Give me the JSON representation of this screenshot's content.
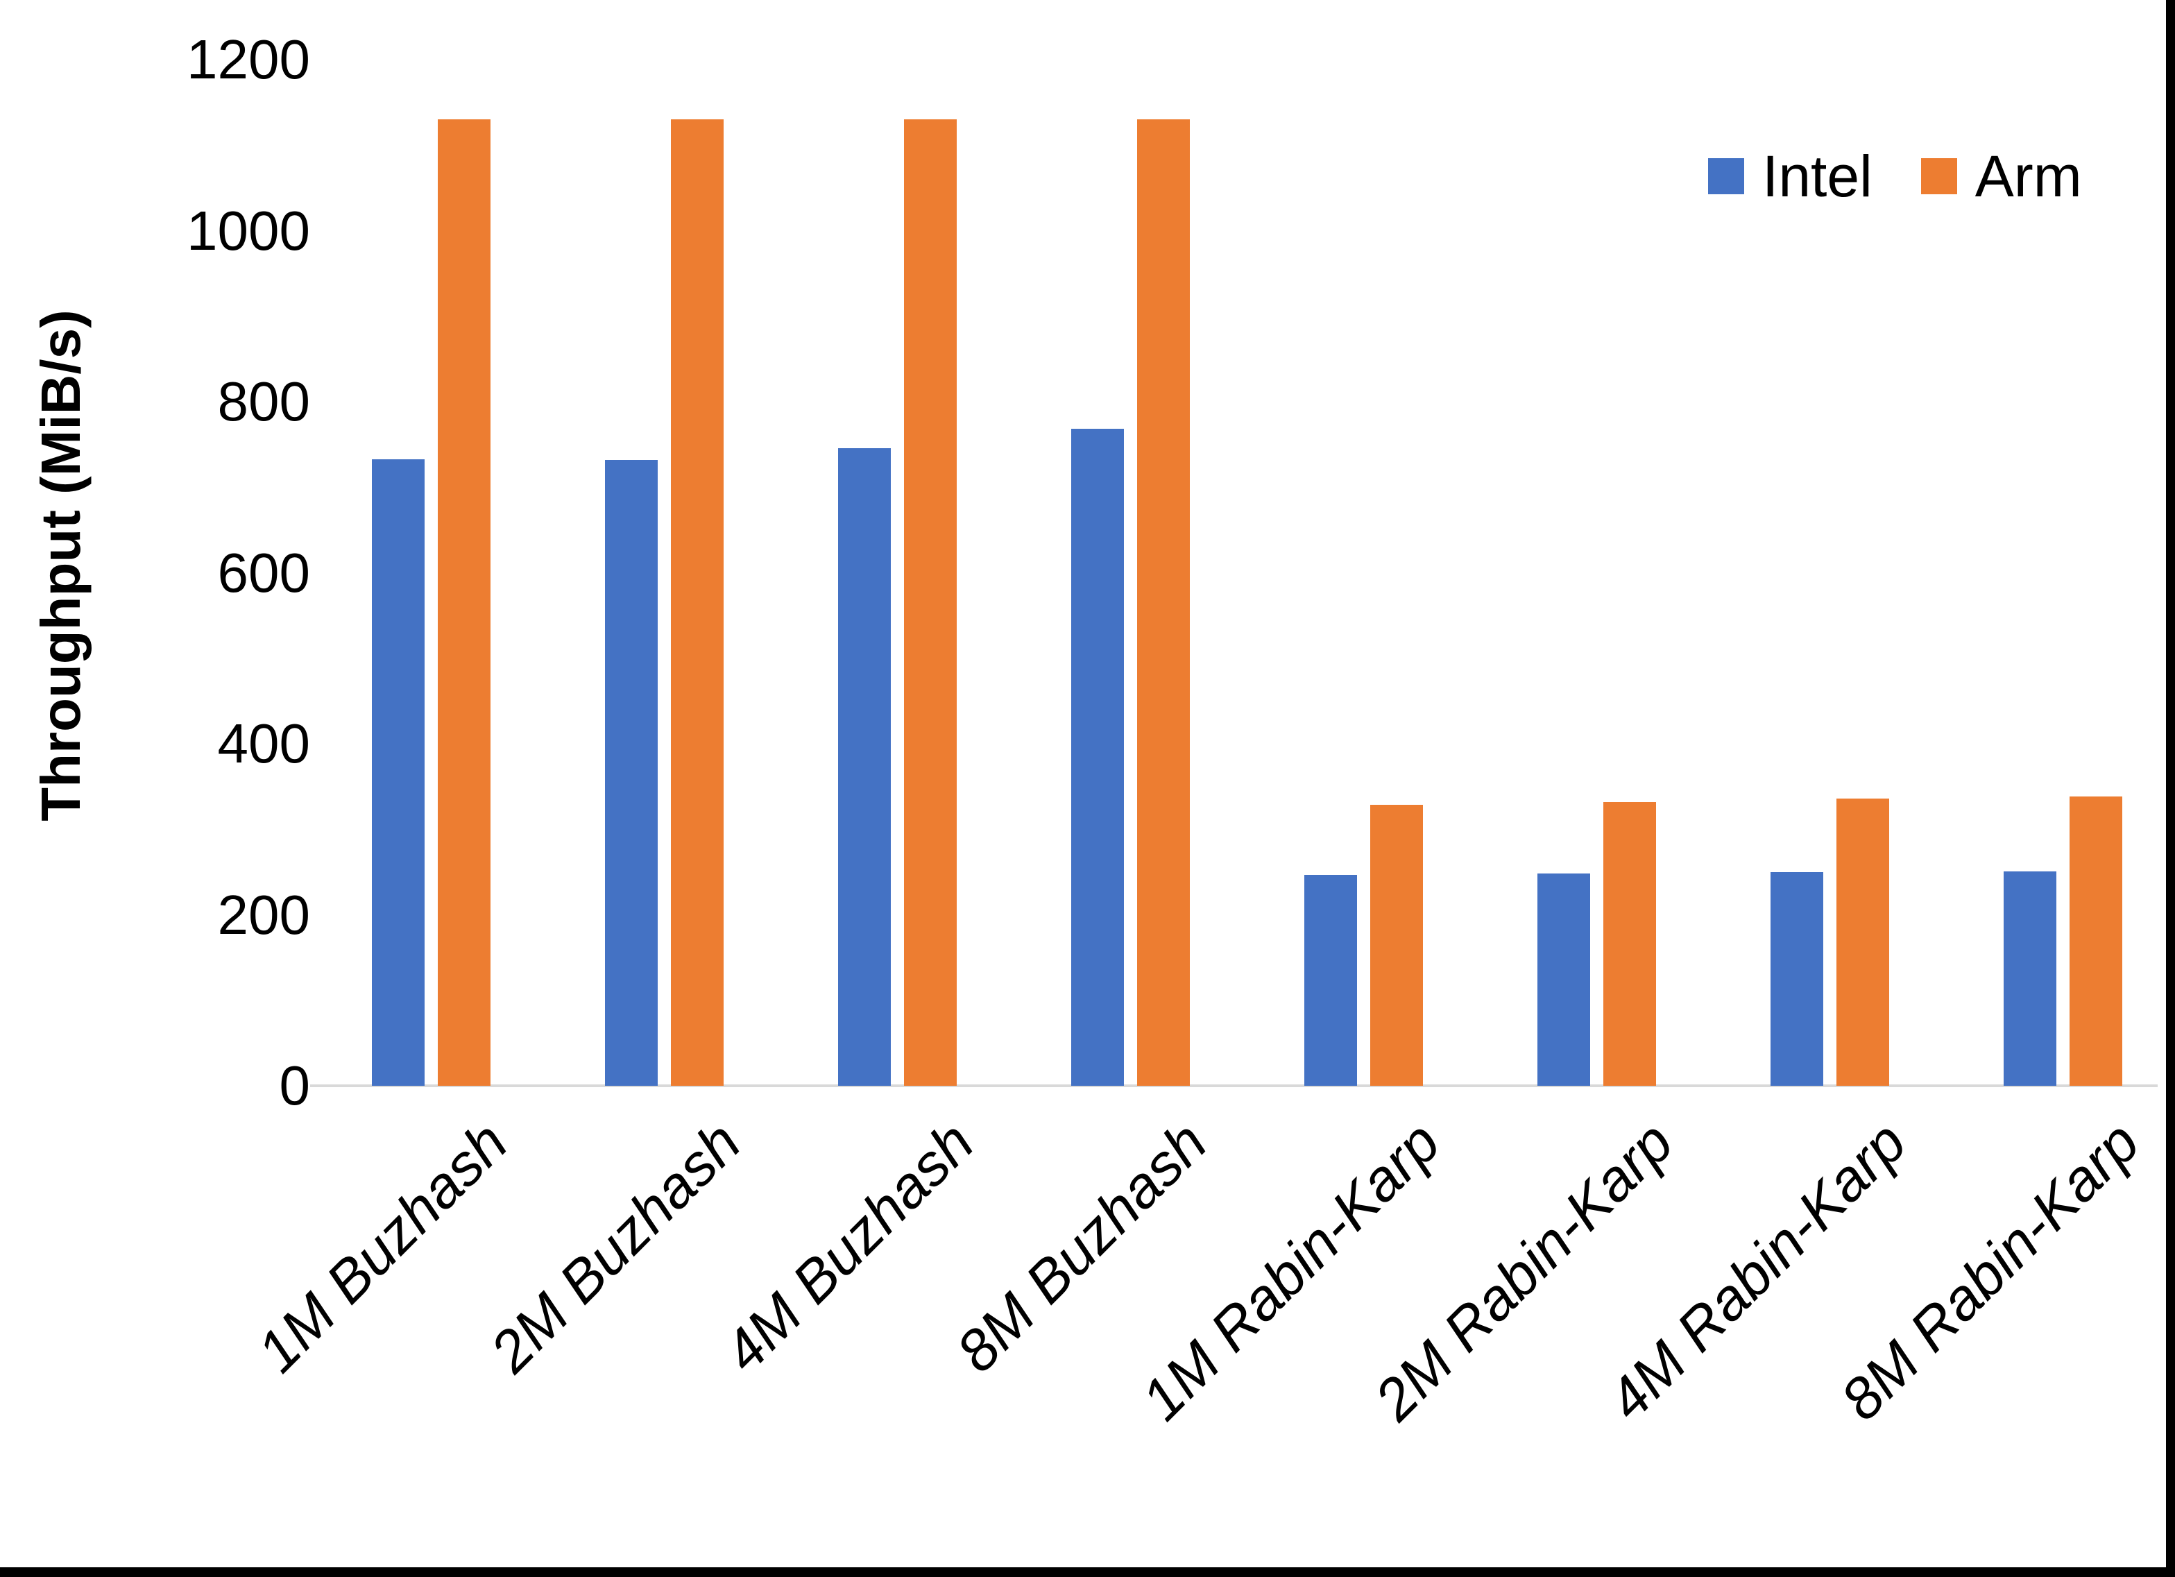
{
  "figure": {
    "background": "#ffffff",
    "edge_border_color": "#000000"
  },
  "chart_data": {
    "type": "bar",
    "title": "",
    "xlabel": "",
    "ylabel": "Throughput (MiB/s)",
    "categories": [
      "1M Buzhash",
      "2M Buzhash",
      "4M Buzhash",
      "8M Buzhash",
      "1M Rabin-Karp",
      "2M Rabin-Karp",
      "4M Rabin-Karp",
      "8M Rabin-Karp"
    ],
    "series": [
      {
        "name": "Intel",
        "color": "#4472C4",
        "values": [
          733,
          732,
          746,
          768,
          247,
          248,
          250,
          251
        ]
      },
      {
        "name": "Arm",
        "color": "#ED7D31",
        "values": [
          1130,
          1130,
          1130,
          1130,
          329,
          332,
          336,
          338
        ]
      }
    ],
    "ylim": [
      0,
      1200
    ],
    "ytick_step": 200,
    "ytick_labels": [
      "0",
      "200",
      "400",
      "600",
      "800",
      "1000",
      "1200"
    ],
    "grid": false,
    "axis_line_color": "#D9D9D9",
    "legend_position": "top-right"
  },
  "legend": {
    "items": [
      {
        "label": "Intel",
        "color": "#4472C4"
      },
      {
        "label": "Arm",
        "color": "#ED7D31"
      }
    ]
  }
}
